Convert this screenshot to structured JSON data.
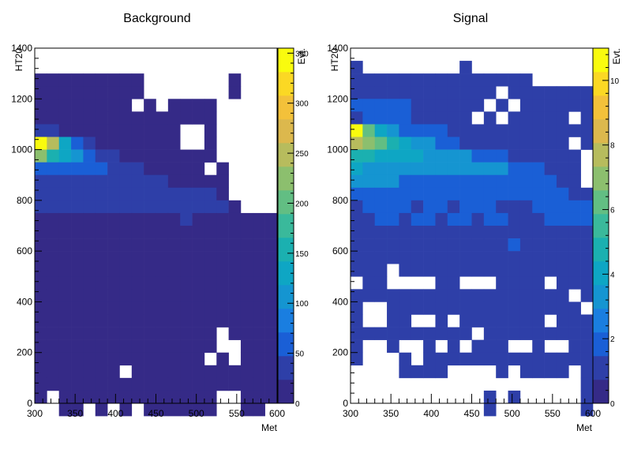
{
  "chart_data": [
    {
      "type": "heatmap",
      "title": "Background",
      "xlabel": "Met",
      "ylabel": "HT20",
      "zlabel": "Evt.",
      "xlim": [
        300,
        600
      ],
      "ylim": [
        0,
        1400
      ],
      "zlim": [
        0,
        355
      ],
      "x_bin_width": 15,
      "y_bin_width": 50,
      "x_ticks": [
        300,
        350,
        400,
        450,
        500,
        550,
        600
      ],
      "y_ticks": [
        0,
        200,
        400,
        600,
        800,
        1000,
        1200,
        1400
      ],
      "z_ticks": [
        0,
        50,
        100,
        150,
        200,
        250,
        300,
        350
      ],
      "grid": false,
      "colorbar": "right",
      "values": [
        [
          0,
          0,
          0,
          0,
          0,
          0,
          0,
          0,
          0,
          0,
          0,
          0,
          0,
          0,
          0,
          0,
          0,
          0,
          0,
          0
        ],
        [
          0,
          0,
          0,
          0,
          0,
          0,
          0,
          0,
          0,
          0,
          0,
          0,
          0,
          0,
          0,
          0,
          0,
          0,
          0,
          0
        ],
        [
          8,
          8,
          8,
          8,
          8,
          8,
          8,
          8,
          8,
          0,
          0,
          0,
          0,
          0,
          0,
          0,
          8,
          0,
          0,
          0
        ],
        [
          10,
          10,
          10,
          10,
          10,
          10,
          10,
          10,
          10,
          0,
          0,
          0,
          0,
          0,
          0,
          0,
          8,
          0,
          0,
          0
        ],
        [
          12,
          12,
          12,
          12,
          12,
          12,
          12,
          12,
          0,
          10,
          0,
          10,
          10,
          10,
          10,
          0,
          0,
          0,
          0,
          0
        ],
        [
          18,
          16,
          16,
          14,
          14,
          14,
          12,
          12,
          12,
          12,
          12,
          12,
          12,
          12,
          12,
          0,
          0,
          0,
          0,
          0
        ],
        [
          30,
          25,
          22,
          18,
          14,
          12,
          10,
          10,
          10,
          10,
          10,
          10,
          0,
          0,
          10,
          0,
          0,
          0,
          0,
          0
        ],
        [
          355,
          240,
          120,
          60,
          25,
          20,
          14,
          14,
          14,
          14,
          14,
          10,
          0,
          0,
          10,
          0,
          0,
          0,
          0,
          0
        ],
        [
          230,
          160,
          120,
          110,
          60,
          40,
          25,
          20,
          20,
          20,
          20,
          20,
          20,
          20,
          14,
          0,
          0,
          0,
          0,
          0
        ],
        [
          55,
          55,
          55,
          55,
          60,
          60,
          45,
          40,
          30,
          20,
          20,
          20,
          20,
          20,
          0,
          20,
          0,
          0,
          0,
          0
        ],
        [
          40,
          40,
          40,
          40,
          40,
          40,
          40,
          40,
          40,
          30,
          30,
          20,
          20,
          20,
          20,
          20,
          0,
          0,
          0,
          0
        ],
        [
          30,
          30,
          30,
          30,
          30,
          30,
          30,
          30,
          30,
          25,
          25,
          25,
          25,
          25,
          25,
          20,
          0,
          0,
          0,
          0
        ],
        [
          30,
          30,
          30,
          30,
          30,
          30,
          28,
          28,
          28,
          28,
          28,
          28,
          28,
          28,
          28,
          28,
          20,
          0,
          0,
          0
        ],
        [
          20,
          20,
          20,
          20,
          20,
          20,
          20,
          20,
          20,
          20,
          20,
          20,
          30,
          20,
          20,
          20,
          20,
          20,
          20,
          20
        ],
        [
          10,
          20,
          10,
          20,
          20,
          20,
          20,
          20,
          20,
          20,
          20,
          20,
          20,
          20,
          20,
          20,
          20,
          20,
          20,
          20
        ],
        [
          20,
          20,
          20,
          20,
          20,
          20,
          20,
          20,
          20,
          20,
          20,
          20,
          20,
          20,
          20,
          20,
          20,
          20,
          20,
          20
        ],
        [
          20,
          20,
          20,
          20,
          20,
          20,
          20,
          20,
          20,
          20,
          20,
          20,
          20,
          20,
          20,
          20,
          20,
          20,
          20,
          20
        ],
        [
          20,
          20,
          20,
          20,
          20,
          20,
          20,
          20,
          20,
          20,
          20,
          20,
          20,
          20,
          20,
          20,
          20,
          20,
          20,
          20
        ],
        [
          20,
          20,
          20,
          20,
          20,
          20,
          20,
          20,
          20,
          20,
          20,
          20,
          20,
          20,
          20,
          20,
          20,
          20,
          20,
          20
        ],
        [
          20,
          20,
          20,
          20,
          20,
          20,
          20,
          20,
          20,
          20,
          20,
          20,
          20,
          20,
          20,
          20,
          20,
          20,
          20,
          20
        ],
        [
          20,
          20,
          20,
          20,
          20,
          20,
          20,
          20,
          20,
          20,
          20,
          20,
          20,
          20,
          20,
          20,
          20,
          20,
          20,
          20
        ],
        [
          15,
          15,
          15,
          15,
          15,
          15,
          15,
          15,
          15,
          15,
          15,
          15,
          15,
          15,
          15,
          15,
          15,
          15,
          15,
          15
        ],
        [
          12,
          12,
          12,
          12,
          12,
          12,
          12,
          12,
          12,
          12,
          12,
          12,
          12,
          12,
          12,
          0,
          12,
          12,
          12,
          12
        ],
        [
          10,
          10,
          10,
          10,
          10,
          10,
          10,
          10,
          10,
          10,
          10,
          10,
          10,
          10,
          10,
          0,
          0,
          10,
          10,
          10
        ],
        [
          10,
          10,
          10,
          10,
          10,
          10,
          10,
          10,
          10,
          10,
          10,
          10,
          10,
          10,
          0,
          10,
          0,
          10,
          10,
          10
        ],
        [
          10,
          10,
          10,
          10,
          10,
          10,
          10,
          0,
          10,
          10,
          10,
          10,
          10,
          10,
          10,
          10,
          10,
          10,
          10,
          10
        ],
        [
          10,
          10,
          10,
          10,
          10,
          10,
          10,
          10,
          10,
          10,
          10,
          10,
          10,
          10,
          10,
          10,
          10,
          10,
          10,
          10
        ],
        [
          10,
          0,
          10,
          10,
          10,
          10,
          10,
          10,
          10,
          10,
          10,
          10,
          10,
          10,
          10,
          0,
          0,
          10,
          10,
          10
        ],
        [
          0,
          0,
          10,
          10,
          0,
          10,
          0,
          10,
          0,
          10,
          10,
          10,
          10,
          10,
          10,
          0,
          0,
          10,
          10,
          0
        ]
      ]
    },
    {
      "type": "heatmap",
      "title": "Signal",
      "xlabel": "Met",
      "ylabel": "HT20",
      "zlabel": "Evt.",
      "xlim": [
        300,
        600
      ],
      "ylim": [
        0,
        1400
      ],
      "zlim": [
        0,
        11
      ],
      "x_bin_width": 15,
      "y_bin_width": 50,
      "x_ticks": [
        300,
        350,
        400,
        450,
        500,
        550,
        600
      ],
      "y_ticks": [
        0,
        200,
        400,
        600,
        800,
        1000,
        1200,
        1400
      ],
      "z_ticks": [
        0,
        2,
        4,
        6,
        8,
        10
      ],
      "grid": false,
      "colorbar": "right",
      "values": [
        [
          0,
          0,
          0,
          0,
          0,
          0,
          0,
          0,
          0,
          0,
          0,
          0,
          0,
          0,
          0,
          0,
          0,
          0,
          0,
          0
        ],
        [
          1,
          0,
          0,
          0,
          0,
          0,
          0,
          0,
          0,
          1,
          0,
          0,
          0,
          0,
          0,
          0,
          0,
          0,
          0,
          0
        ],
        [
          1,
          1,
          1,
          1,
          1,
          1,
          1,
          1,
          1,
          1,
          1,
          1,
          1,
          1,
          1,
          0,
          0,
          0,
          0,
          0
        ],
        [
          1,
          1,
          1,
          1,
          1,
          1,
          1,
          1,
          1,
          1,
          1,
          1,
          0,
          1,
          1,
          1,
          1,
          1,
          1,
          1
        ],
        [
          2,
          2,
          2,
          2,
          2,
          1,
          1,
          1,
          1,
          1,
          1,
          0,
          1,
          0,
          1,
          1,
          1,
          1,
          1,
          1
        ],
        [
          1,
          2,
          2,
          2,
          2,
          1,
          1,
          1,
          1,
          1,
          0,
          1,
          0,
          1,
          1,
          1,
          1,
          1,
          0,
          1
        ],
        [
          11,
          6,
          4,
          3,
          2,
          2,
          2,
          2,
          1,
          1,
          1,
          1,
          1,
          1,
          1,
          1,
          1,
          1,
          1,
          1
        ],
        [
          8,
          7,
          6,
          5,
          4,
          3,
          3,
          2,
          2,
          1,
          1,
          1,
          1,
          1,
          1,
          1,
          1,
          1,
          0,
          1
        ],
        [
          5,
          5,
          4,
          4,
          4,
          4,
          3,
          3,
          3,
          3,
          2,
          2,
          2,
          1,
          1,
          1,
          1,
          1,
          1,
          0
        ],
        [
          4,
          3,
          3,
          3,
          3,
          3,
          3,
          3,
          3,
          3,
          3,
          3,
          3,
          2,
          2,
          2,
          1,
          1,
          1,
          0
        ],
        [
          3,
          3,
          3,
          3,
          2,
          2,
          2,
          2,
          2,
          2,
          2,
          2,
          2,
          2,
          2,
          2,
          2,
          1,
          1,
          0
        ],
        [
          2,
          2,
          2,
          2,
          2,
          2,
          2,
          2,
          2,
          2,
          2,
          2,
          2,
          2,
          2,
          2,
          2,
          2,
          1,
          1
        ],
        [
          1,
          2,
          2,
          2,
          2,
          1,
          2,
          2,
          1,
          2,
          2,
          2,
          1,
          1,
          1,
          2,
          2,
          2,
          2,
          2
        ],
        [
          1,
          1,
          2,
          2,
          1,
          2,
          2,
          1,
          2,
          2,
          1,
          2,
          2,
          1,
          1,
          1,
          2,
          2,
          2,
          2
        ],
        [
          1,
          1,
          1,
          1,
          1,
          1,
          1,
          1,
          1,
          1,
          1,
          1,
          1,
          1,
          1,
          1,
          1,
          1,
          1,
          1
        ],
        [
          1,
          1,
          1,
          1,
          1,
          1,
          1,
          1,
          1,
          1,
          1,
          1,
          1,
          2,
          1,
          1,
          1,
          1,
          1,
          1
        ],
        [
          1,
          1,
          1,
          1,
          1,
          1,
          1,
          1,
          1,
          1,
          1,
          1,
          1,
          1,
          1,
          1,
          1,
          1,
          1,
          1
        ],
        [
          1,
          1,
          1,
          0,
          1,
          1,
          1,
          1,
          1,
          1,
          1,
          1,
          1,
          1,
          1,
          1,
          1,
          1,
          1,
          1
        ],
        [
          0,
          1,
          1,
          0,
          0,
          0,
          0,
          1,
          1,
          0,
          0,
          0,
          1,
          1,
          1,
          1,
          0,
          1,
          1,
          1
        ],
        [
          1,
          1,
          1,
          1,
          1,
          1,
          1,
          1,
          1,
          1,
          1,
          1,
          1,
          1,
          1,
          1,
          1,
          1,
          0,
          1
        ],
        [
          1,
          0,
          0,
          1,
          1,
          1,
          1,
          1,
          1,
          1,
          1,
          1,
          1,
          1,
          1,
          1,
          1,
          1,
          1,
          0
        ],
        [
          1,
          0,
          0,
          1,
          1,
          0,
          0,
          1,
          0,
          1,
          1,
          1,
          1,
          1,
          1,
          1,
          0,
          1,
          1,
          1
        ],
        [
          1,
          1,
          1,
          1,
          1,
          1,
          1,
          1,
          1,
          1,
          0,
          1,
          1,
          1,
          1,
          1,
          1,
          1,
          1,
          1
        ],
        [
          1,
          0,
          0,
          1,
          0,
          0,
          1,
          0,
          1,
          0,
          1,
          1,
          1,
          0,
          0,
          1,
          0,
          0,
          1,
          1
        ],
        [
          1,
          0,
          0,
          0,
          1,
          0,
          1,
          1,
          1,
          1,
          1,
          1,
          1,
          1,
          1,
          1,
          1,
          1,
          1,
          1
        ],
        [
          0,
          0,
          0,
          0,
          1,
          1,
          1,
          1,
          0,
          0,
          0,
          0,
          1,
          0,
          1,
          1,
          1,
          1,
          0,
          1
        ],
        [
          0,
          0,
          0,
          0,
          0,
          0,
          0,
          0,
          0,
          0,
          0,
          0,
          0,
          0,
          0,
          0,
          0,
          0,
          0,
          1
        ],
        [
          0,
          0,
          0,
          0,
          0,
          0,
          0,
          0,
          0,
          0,
          0,
          1,
          0,
          1,
          0,
          0,
          0,
          0,
          0,
          1
        ],
        [
          0,
          0,
          0,
          0,
          0,
          0,
          0,
          0,
          0,
          0,
          0,
          1,
          0,
          0,
          0,
          0,
          0,
          0,
          0,
          1
        ]
      ]
    }
  ]
}
